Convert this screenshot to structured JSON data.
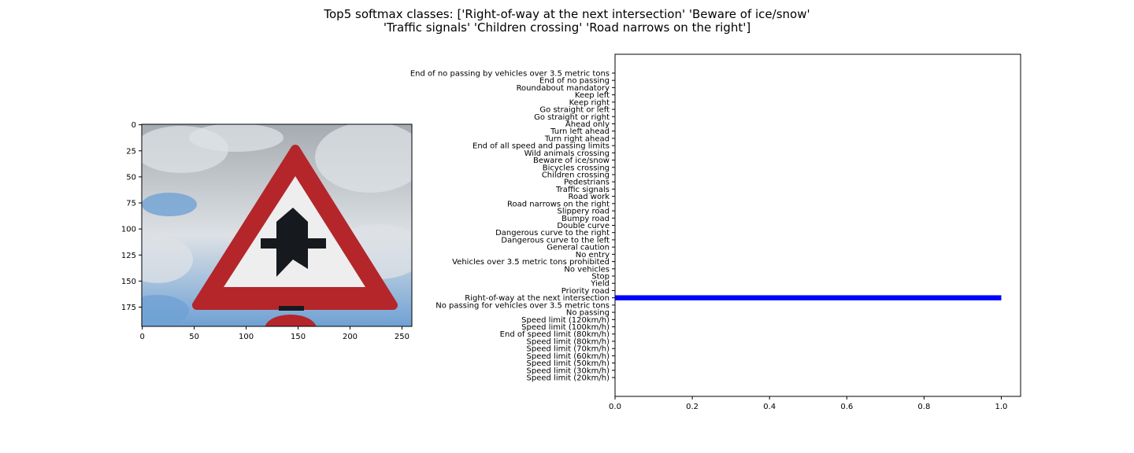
{
  "figure": {
    "title_lines": [
      "Top5 softmax classes: ['Right-of-way at the next intersection' 'Beware of ice/snow'",
      "'Traffic signals' 'Children crossing' 'Road narrows on the right']"
    ]
  },
  "image_panel": {
    "x_ticks": [
      0,
      50,
      100,
      150,
      200,
      250
    ],
    "y_ticks": [
      0,
      25,
      50,
      75,
      100,
      125,
      150,
      175
    ],
    "x_range": [
      -0.5,
      259.5
    ],
    "y_range": [
      193.5,
      -0.5
    ],
    "colors": {
      "sky_top": "#a5abb0",
      "sky_blue": "#6fa1d4",
      "cloud": "#dde1e5",
      "sign_red": "#b4262a",
      "sign_white": "#eeeeee",
      "symbol": "#16191d"
    }
  },
  "chart_data": {
    "type": "bar",
    "orientation": "horizontal",
    "categories": [
      "Speed limit (20km/h)",
      "Speed limit (30km/h)",
      "Speed limit (50km/h)",
      "Speed limit (60km/h)",
      "Speed limit (70km/h)",
      "Speed limit (80km/h)",
      "End of speed limit (80km/h)",
      "Speed limit (100km/h)",
      "Speed limit (120km/h)",
      "No passing",
      "No passing for vehicles over 3.5 metric tons",
      "Right-of-way at the next intersection",
      "Priority road",
      "Yield",
      "Stop",
      "No vehicles",
      "Vehicles over 3.5 metric tons prohibited",
      "No entry",
      "General caution",
      "Dangerous curve to the left",
      "Dangerous curve to the right",
      "Double curve",
      "Bumpy road",
      "Slippery road",
      "Road narrows on the right",
      "Road work",
      "Traffic signals",
      "Pedestrians",
      "Children crossing",
      "Bicycles crossing",
      "Beware of ice/snow",
      "Wild animals crossing",
      "End of all speed and passing limits",
      "Turn right ahead",
      "Turn left ahead",
      "Ahead only",
      "Go straight or right",
      "Go straight or left",
      "Keep right",
      "Keep left",
      "Roundabout mandatory",
      "End of no passing",
      "End of no passing by vehicles over 3.5 metric tons"
    ],
    "values": [
      0,
      0,
      0,
      0,
      0,
      0,
      0,
      0,
      0,
      0,
      0,
      1.0,
      0,
      0,
      0,
      0,
      0,
      0,
      0,
      0,
      0,
      0,
      0,
      0,
      0,
      0,
      0,
      0,
      0,
      0,
      0,
      0,
      0,
      0,
      0,
      0,
      0,
      0,
      0,
      0,
      0,
      0,
      0
    ],
    "xlim": [
      0,
      1.05
    ],
    "ylim": [
      -2.6,
      44.6
    ],
    "x_ticks": [
      "0.0",
      "0.2",
      "0.4",
      "0.6",
      "0.8",
      "1.0"
    ],
    "bar_color": "#0000ff",
    "xlabel": "",
    "ylabel": ""
  }
}
